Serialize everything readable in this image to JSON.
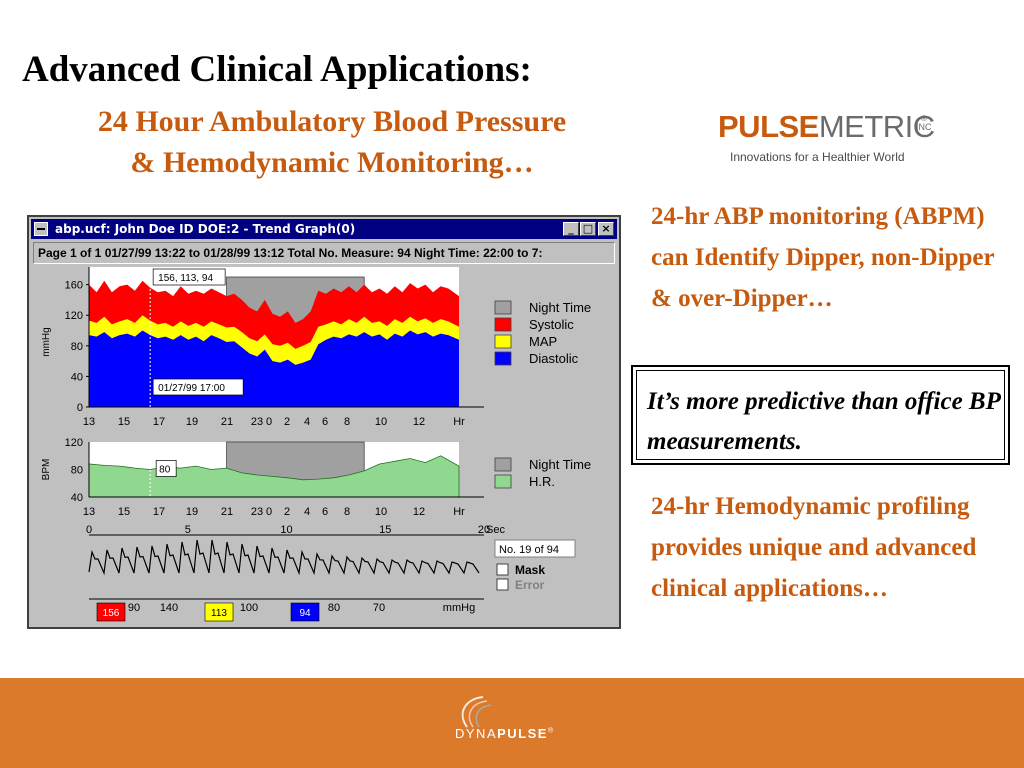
{
  "slide": {
    "title": "Advanced Clinical Applications:",
    "subtitle_line1": "24 Hour Ambulatory Blood Pressure",
    "subtitle_line2": "& Hemodynamic Monitoring…"
  },
  "logo": {
    "pulse": "PULSE",
    "metric": "METRIC",
    "inc": "INC",
    "reg": "®",
    "tagline": "Innovations for a Healthier World"
  },
  "bullets": {
    "abpm": "24-hr ABP monitoring (ABPM) can Identify Dipper, non-Dipper & over-Dipper…",
    "hemo": "24-hr Hemodynamic profiling provides unique and advanced clinical applications…"
  },
  "callout": {
    "text": "It’s more predictive than office BP measurements."
  },
  "window": {
    "title": "abp.ucf: John Doe ID DOE:2 - Trend Graph(0)",
    "btn_min": "_",
    "btn_max": "□",
    "btn_close": "×",
    "info": "Page 1 of 1   01/27/99 13:22 to 01/28/99 13:12   Total No. Measure: 94   Night Time: 22:00 to 7:"
  },
  "footer": {
    "brand_light": "DYNA",
    "brand_bold": "PULSE",
    "reg": "®"
  },
  "colors": {
    "accent": "#c65a0f",
    "footer": "#dc7a2b",
    "systolic": "#ff0000",
    "map": "#ffff00",
    "diastolic": "#0000ff",
    "hr_fill": "#90d890",
    "night": "#a0a0a0"
  },
  "chart_data": [
    {
      "type": "area",
      "name_label": "bp-trend",
      "ylabel": "mmHg",
      "ylim": [
        0,
        170
      ],
      "yticks": [
        "0",
        "40",
        "80",
        "120",
        "160"
      ],
      "xtick_labels": [
        "13",
        "15",
        "17",
        "19",
        "21",
        "23",
        "0",
        "2",
        "4",
        "6",
        "8",
        "10",
        "12",
        "Hr"
      ],
      "x_hours": [
        13,
        13.5,
        14,
        14.5,
        15,
        15.5,
        16,
        16.5,
        17,
        17.5,
        18,
        18.5,
        19,
        19.5,
        20,
        20.5,
        21,
        21.5,
        22,
        22.5,
        23,
        23.5,
        24,
        24.5,
        25,
        25.5,
        26,
        26.5,
        27,
        27.5,
        28,
        28.5,
        29,
        29.5,
        30,
        30.5,
        31,
        31.5,
        32,
        32.5,
        33,
        33.5,
        34,
        34.5,
        35,
        35.5,
        36,
        36.5,
        37.2
      ],
      "systolic": [
        160,
        150,
        165,
        150,
        158,
        160,
        152,
        165,
        156,
        150,
        152,
        145,
        158,
        148,
        152,
        148,
        155,
        150,
        145,
        148,
        140,
        130,
        125,
        140,
        122,
        118,
        125,
        110,
        115,
        125,
        152,
        148,
        155,
        150,
        158,
        150,
        160,
        150,
        155,
        148,
        158,
        150,
        162,
        155,
        160,
        150,
        158,
        155,
        145
      ],
      "map": [
        113,
        110,
        118,
        108,
        112,
        115,
        110,
        120,
        113,
        108,
        110,
        105,
        112,
        106,
        110,
        105,
        112,
        108,
        104,
        105,
        98,
        90,
        86,
        95,
        82,
        80,
        84,
        76,
        80,
        85,
        105,
        108,
        112,
        108,
        115,
        110,
        118,
        110,
        112,
        106,
        115,
        110,
        118,
        112,
        116,
        110,
        115,
        112,
        105
      ],
      "diastolic": [
        94,
        92,
        98,
        90,
        94,
        96,
        92,
        100,
        94,
        90,
        92,
        88,
        94,
        88,
        92,
        86,
        94,
        90,
        85,
        86,
        78,
        70,
        66,
        75,
        60,
        58,
        62,
        55,
        58,
        62,
        82,
        88,
        92,
        90,
        95,
        92,
        98,
        92,
        95,
        88,
        96,
        92,
        100,
        95,
        98,
        92,
        96,
        94,
        88
      ],
      "legend": [
        "Night Time",
        "Systolic",
        "MAP",
        "Diastolic"
      ],
      "night_span": [
        22,
        31
      ],
      "cursor_hour": 17,
      "tooltip_value": "156, 113, 94",
      "tooltip_time": "01/27/99 17:00"
    },
    {
      "type": "area",
      "name_label": "hr-trend",
      "ylabel": "BPM",
      "ylim": [
        40,
        120
      ],
      "yticks": [
        "40",
        "80",
        "120"
      ],
      "xtick_labels": [
        "13",
        "15",
        "17",
        "19",
        "21",
        "23",
        "0",
        "2",
        "4",
        "6",
        "8",
        "10",
        "12",
        "Hr"
      ],
      "x_hours": [
        13,
        14,
        15,
        16,
        17,
        18,
        19,
        20,
        21,
        22,
        23,
        24,
        25,
        26,
        27,
        28,
        29,
        30,
        31,
        32,
        33,
        34,
        35,
        36,
        37.2
      ],
      "hr": [
        88,
        86,
        85,
        82,
        80,
        84,
        82,
        85,
        80,
        82,
        75,
        72,
        70,
        68,
        65,
        66,
        68,
        72,
        78,
        88,
        92,
        96,
        90,
        100,
        85
      ],
      "legend": [
        "Night Time",
        "H.R."
      ],
      "night_span": [
        22,
        31
      ],
      "cursor_value": "80"
    },
    {
      "type": "line",
      "name_label": "pulse-waveform",
      "xtick_labels": [
        "0",
        "5",
        "10",
        "15",
        "20"
      ],
      "x_unit": "Sec",
      "xlim": [
        0,
        20
      ],
      "pressure_scale": [
        "90",
        "140",
        "100",
        "80",
        "70",
        "mmHg"
      ],
      "markers": [
        {
          "label": "156",
          "color": "#ff0000"
        },
        {
          "label": "113",
          "color": "#ffff00"
        },
        {
          "label": "94",
          "color": "#0000ff"
        }
      ],
      "measure_no": "No. 19 of 94",
      "checkboxes": [
        {
          "label": "Mask",
          "checked": false,
          "enabled": true
        },
        {
          "label": "Error",
          "checked": false,
          "enabled": false
        }
      ]
    }
  ]
}
